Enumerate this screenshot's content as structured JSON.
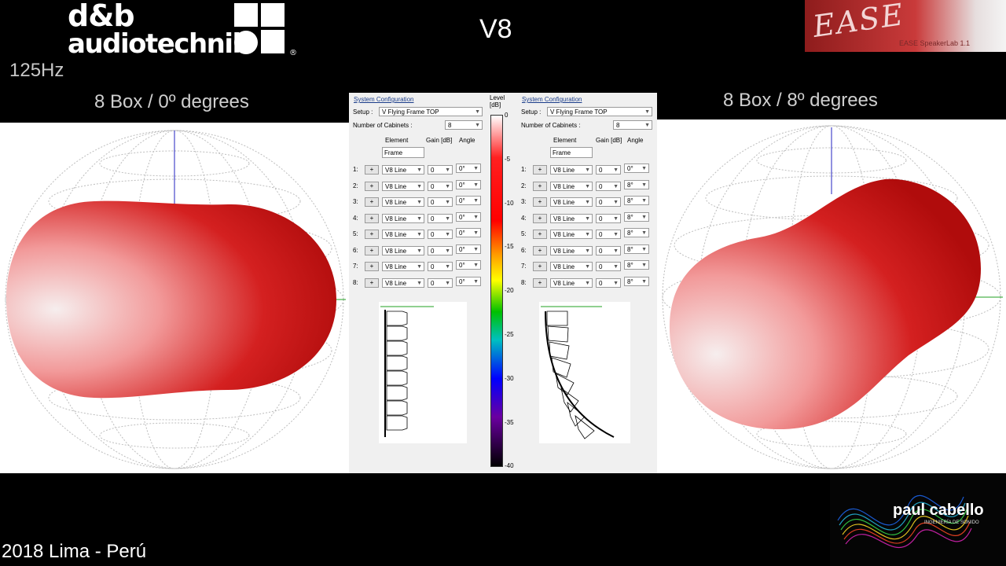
{
  "header": {
    "brand_line1": "d&b",
    "brand_line2": "audiotechnik",
    "registered": "®",
    "frequency": "125Hz",
    "title": "V8",
    "ease_logo_text": "EASE",
    "ease_logo_small": "EASE SpeakerLab 1.1"
  },
  "left": {
    "title": "8 Box  / 0º degrees",
    "config": {
      "section": "System Configuration",
      "setup_label": "Setup :",
      "setup_value": "V Flying Frame TOP",
      "cabinets_label": "Number of Cabinets :",
      "cabinets_value": "8",
      "col_element": "Element",
      "col_gain": "Gain [dB]",
      "col_angle": "Angle",
      "frame_value": "Frame",
      "rows": [
        {
          "num": "1:",
          "btn": "+",
          "element": "V8 Line",
          "gain": "0",
          "angle": "0°"
        },
        {
          "num": "2:",
          "btn": "+",
          "element": "V8 Line",
          "gain": "0",
          "angle": "0°"
        },
        {
          "num": "3:",
          "btn": "+",
          "element": "V8 Line",
          "gain": "0",
          "angle": "0°"
        },
        {
          "num": "4:",
          "btn": "+",
          "element": "V8 Line",
          "gain": "0",
          "angle": "0°"
        },
        {
          "num": "5:",
          "btn": "+",
          "element": "V8 Line",
          "gain": "0",
          "angle": "0°"
        },
        {
          "num": "6:",
          "btn": "+",
          "element": "V8 Line",
          "gain": "0",
          "angle": "0°"
        },
        {
          "num": "7:",
          "btn": "+",
          "element": "V8 Line",
          "gain": "0",
          "angle": "0°"
        },
        {
          "num": "8:",
          "btn": "+",
          "element": "V8 Line",
          "gain": "0",
          "angle": "0°"
        }
      ]
    }
  },
  "right": {
    "title": "8 Box  / 8º degrees",
    "config": {
      "section": "System Configuration",
      "setup_label": "Setup :",
      "setup_value": "V Flying Frame TOP",
      "cabinets_label": "Number of Cabinets :",
      "cabinets_value": "8",
      "col_element": "Element",
      "col_gain": "Gain [dB]",
      "col_angle": "Angle",
      "frame_value": "Frame",
      "rows": [
        {
          "num": "1:",
          "btn": "+",
          "element": "V8 Line",
          "gain": "0",
          "angle": "0°"
        },
        {
          "num": "2:",
          "btn": "+",
          "element": "V8 Line",
          "gain": "0",
          "angle": "8°"
        },
        {
          "num": "3:",
          "btn": "+",
          "element": "V8 Line",
          "gain": "0",
          "angle": "8°"
        },
        {
          "num": "4:",
          "btn": "+",
          "element": "V8 Line",
          "gain": "0",
          "angle": "8°"
        },
        {
          "num": "5:",
          "btn": "+",
          "element": "V8 Line",
          "gain": "0",
          "angle": "8°"
        },
        {
          "num": "6:",
          "btn": "+",
          "element": "V8 Line",
          "gain": "0",
          "angle": "8°"
        },
        {
          "num": "7:",
          "btn": "+",
          "element": "V8 Line",
          "gain": "0",
          "angle": "8°"
        },
        {
          "num": "8:",
          "btn": "+",
          "element": "V8 Line",
          "gain": "0",
          "angle": "8°"
        }
      ]
    }
  },
  "colorbar": {
    "title_line1": "Level",
    "title_line2": "[dB]",
    "ticks": [
      "0",
      "-5",
      "-10",
      "-15",
      "-20",
      "-25",
      "-30",
      "-35",
      "-40"
    ]
  },
  "footer": {
    "place": "2018 Lima - Perú",
    "logo_name": "paul cabello",
    "logo_sub": "INGENIERÍA DE SONIDO"
  },
  "colors": {
    "balloon_red": "#d01818",
    "balloon_light": "#f4e6e6",
    "axis_blue": "#2020c0",
    "axis_green": "#20a020"
  }
}
